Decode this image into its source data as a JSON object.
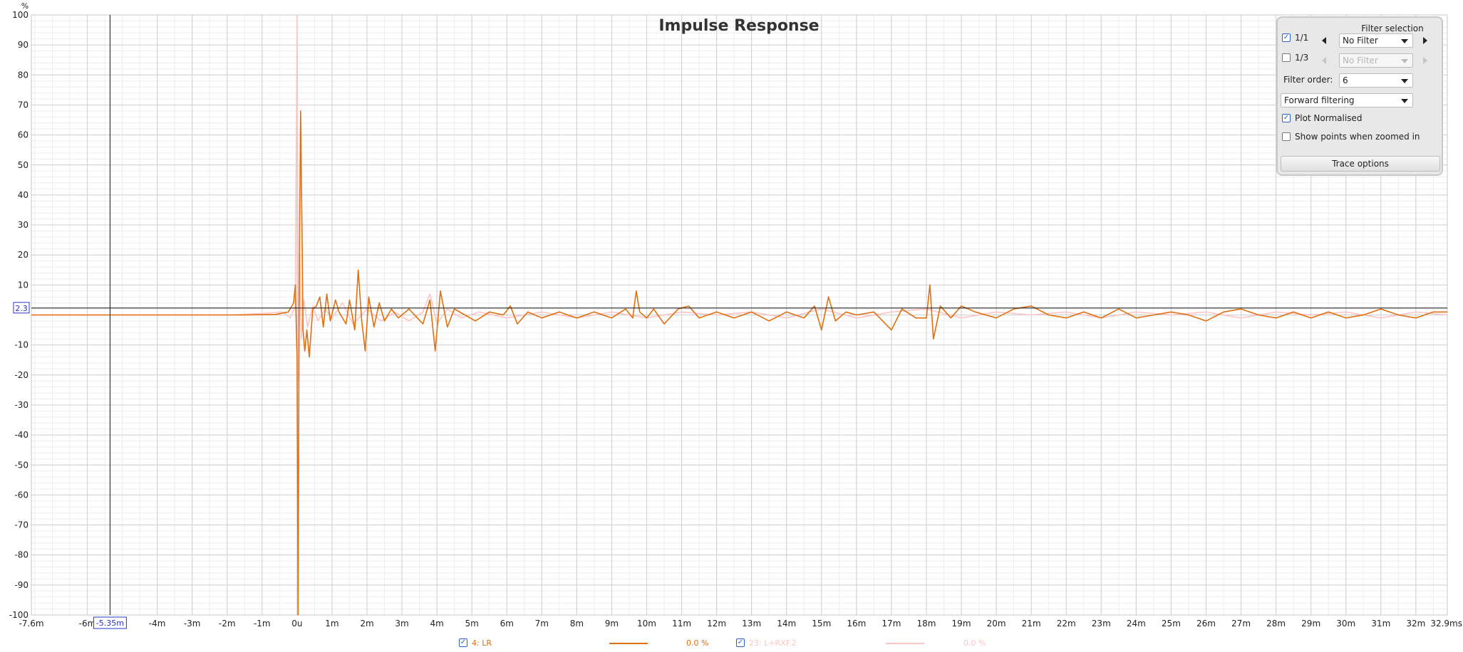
{
  "chart_data": {
    "type": "line",
    "title": "Impulse Response",
    "ylabel": "%",
    "xlabel": "",
    "xunit_end_label": "32.9ms",
    "xlim": [
      -7.6,
      32.9
    ],
    "ylim": [
      -100,
      100
    ],
    "xticks": [
      {
        "v": -7.6,
        "label": "-7.6m"
      },
      {
        "v": -6,
        "label": "-6m"
      },
      {
        "v": -4,
        "label": "-4m"
      },
      {
        "v": -3,
        "label": "-3m"
      },
      {
        "v": -2,
        "label": "-2m"
      },
      {
        "v": -1,
        "label": "-1m"
      },
      {
        "v": 0,
        "label": "0u"
      },
      {
        "v": 1,
        "label": "1m"
      },
      {
        "v": 2,
        "label": "2m"
      },
      {
        "v": 3,
        "label": "3m"
      },
      {
        "v": 4,
        "label": "4m"
      },
      {
        "v": 5,
        "label": "5m"
      },
      {
        "v": 6,
        "label": "6m"
      },
      {
        "v": 7,
        "label": "7m"
      },
      {
        "v": 8,
        "label": "8m"
      },
      {
        "v": 9,
        "label": "9m"
      },
      {
        "v": 10,
        "label": "10m"
      },
      {
        "v": 11,
        "label": "11m"
      },
      {
        "v": 12,
        "label": "12m"
      },
      {
        "v": 13,
        "label": "13m"
      },
      {
        "v": 14,
        "label": "14m"
      },
      {
        "v": 15,
        "label": "15m"
      },
      {
        "v": 16,
        "label": "16m"
      },
      {
        "v": 17,
        "label": "17m"
      },
      {
        "v": 18,
        "label": "18m"
      },
      {
        "v": 19,
        "label": "19m"
      },
      {
        "v": 20,
        "label": "20m"
      },
      {
        "v": 21,
        "label": "21m"
      },
      {
        "v": 22,
        "label": "22m"
      },
      {
        "v": 23,
        "label": "23m"
      },
      {
        "v": 24,
        "label": "24m"
      },
      {
        "v": 25,
        "label": "25m"
      },
      {
        "v": 26,
        "label": "26m"
      },
      {
        "v": 27,
        "label": "27m"
      },
      {
        "v": 28,
        "label": "28m"
      },
      {
        "v": 29,
        "label": "29m"
      },
      {
        "v": 30,
        "label": "30m"
      },
      {
        "v": 31,
        "label": "31m"
      },
      {
        "v": 32,
        "label": "32m"
      },
      {
        "v": 32.9,
        "label": "32.9ms"
      }
    ],
    "yticks": [
      100,
      90,
      80,
      70,
      60,
      50,
      40,
      30,
      20,
      10,
      0,
      -10,
      -20,
      -30,
      -40,
      -50,
      -60,
      -70,
      -80,
      -90,
      -100
    ],
    "ytick_labels": [
      "100",
      "90",
      "80",
      "70",
      "60",
      "50",
      "40",
      "30",
      "20",
      "10",
      "",
      "-10",
      "-20",
      "-30",
      "-40",
      "-50",
      "-60",
      "-70",
      "-80",
      "-90",
      "-100"
    ],
    "grid": true,
    "cursor": {
      "x": -5.35,
      "y": 2.3,
      "x_label": "-5.35m",
      "y_label": "2.3"
    },
    "series": [
      {
        "name": "4: LR",
        "color": "#e07010",
        "points": [
          [
            -7.6,
            0
          ],
          [
            -1.5,
            0
          ],
          [
            -0.6,
            0.2
          ],
          [
            -0.25,
            1
          ],
          [
            -0.1,
            4
          ],
          [
            -0.05,
            10
          ],
          [
            0,
            -15
          ],
          [
            0.03,
            -100
          ],
          [
            0.06,
            5
          ],
          [
            0.1,
            68
          ],
          [
            0.14,
            30
          ],
          [
            0.17,
            -5
          ],
          [
            0.22,
            -12
          ],
          [
            0.28,
            -5
          ],
          [
            0.35,
            -14
          ],
          [
            0.45,
            2
          ],
          [
            0.55,
            3
          ],
          [
            0.65,
            6
          ],
          [
            0.75,
            -4
          ],
          [
            0.85,
            7
          ],
          [
            0.95,
            -2
          ],
          [
            1.1,
            5
          ],
          [
            1.2,
            1
          ],
          [
            1.4,
            -3
          ],
          [
            1.5,
            5
          ],
          [
            1.65,
            -5
          ],
          [
            1.75,
            15
          ],
          [
            1.85,
            -2
          ],
          [
            1.95,
            -12
          ],
          [
            2.05,
            6
          ],
          [
            2.2,
            -4
          ],
          [
            2.35,
            4
          ],
          [
            2.5,
            -2
          ],
          [
            2.7,
            2
          ],
          [
            2.9,
            -1
          ],
          [
            3.2,
            2
          ],
          [
            3.6,
            -3
          ],
          [
            3.8,
            5
          ],
          [
            3.95,
            -12
          ],
          [
            4.1,
            8
          ],
          [
            4.3,
            -4
          ],
          [
            4.5,
            2
          ],
          [
            4.8,
            0
          ],
          [
            5.1,
            -2
          ],
          [
            5.5,
            1
          ],
          [
            5.9,
            0
          ],
          [
            6.1,
            3
          ],
          [
            6.3,
            -3
          ],
          [
            6.6,
            1
          ],
          [
            7,
            -1
          ],
          [
            7.5,
            1
          ],
          [
            8,
            -1
          ],
          [
            8.5,
            1
          ],
          [
            9,
            -1
          ],
          [
            9.4,
            2
          ],
          [
            9.6,
            -1
          ],
          [
            9.7,
            8
          ],
          [
            9.8,
            1
          ],
          [
            10,
            -1
          ],
          [
            10.2,
            2
          ],
          [
            10.5,
            -3
          ],
          [
            10.9,
            2
          ],
          [
            11.2,
            3
          ],
          [
            11.5,
            -1
          ],
          [
            12,
            1
          ],
          [
            12.5,
            -1
          ],
          [
            13,
            1
          ],
          [
            13.5,
            -2
          ],
          [
            14,
            1
          ],
          [
            14.5,
            -1
          ],
          [
            14.8,
            3
          ],
          [
            15,
            -5
          ],
          [
            15.2,
            6
          ],
          [
            15.4,
            -2
          ],
          [
            15.7,
            1
          ],
          [
            16,
            0
          ],
          [
            16.5,
            1
          ],
          [
            17,
            -5
          ],
          [
            17.3,
            2
          ],
          [
            17.7,
            -1
          ],
          [
            18,
            -1
          ],
          [
            18.1,
            10
          ],
          [
            18.2,
            -8
          ],
          [
            18.4,
            3
          ],
          [
            18.7,
            -1
          ],
          [
            19,
            3
          ],
          [
            19.4,
            1
          ],
          [
            20,
            -1
          ],
          [
            20.5,
            2
          ],
          [
            21,
            3
          ],
          [
            21.5,
            0
          ],
          [
            22,
            -1
          ],
          [
            22.5,
            1
          ],
          [
            23,
            -1
          ],
          [
            23.5,
            2
          ],
          [
            24,
            -1
          ],
          [
            24.5,
            0
          ],
          [
            25,
            1
          ],
          [
            25.5,
            0
          ],
          [
            26,
            -2
          ],
          [
            26.5,
            1
          ],
          [
            27,
            2
          ],
          [
            27.5,
            0
          ],
          [
            28,
            -1
          ],
          [
            28.5,
            1
          ],
          [
            29,
            -1
          ],
          [
            29.5,
            1
          ],
          [
            30,
            -1
          ],
          [
            30.5,
            0
          ],
          [
            31,
            2
          ],
          [
            31.5,
            0
          ],
          [
            32,
            -1
          ],
          [
            32.5,
            1
          ],
          [
            32.9,
            1
          ]
        ]
      },
      {
        "name": "23: L+RXF.2",
        "color": "#ffc4c4",
        "points": [
          [
            -7.6,
            0
          ],
          [
            -2,
            0
          ],
          [
            -1,
            0.5
          ],
          [
            -0.4,
            1
          ],
          [
            -0.2,
            -1
          ],
          [
            -0.05,
            3
          ],
          [
            0,
            100
          ],
          [
            0.04,
            -22
          ],
          [
            0.08,
            20
          ],
          [
            0.12,
            -8
          ],
          [
            0.2,
            5
          ],
          [
            0.3,
            -4
          ],
          [
            0.45,
            3
          ],
          [
            0.6,
            -2
          ],
          [
            0.8,
            2
          ],
          [
            1,
            -1
          ],
          [
            1.3,
            4
          ],
          [
            1.6,
            -3
          ],
          [
            2,
            2
          ],
          [
            2.4,
            -2
          ],
          [
            2.8,
            1
          ],
          [
            3.2,
            -2
          ],
          [
            3.6,
            1
          ],
          [
            3.8,
            7
          ],
          [
            4,
            -3
          ],
          [
            4.3,
            2
          ],
          [
            4.7,
            -1
          ],
          [
            5.2,
            1
          ],
          [
            6,
            -1
          ],
          [
            7,
            1
          ],
          [
            8,
            -1
          ],
          [
            9,
            1
          ],
          [
            10,
            -1
          ],
          [
            11,
            1
          ],
          [
            12,
            0
          ],
          [
            13,
            1
          ],
          [
            14,
            -1
          ],
          [
            15,
            2
          ],
          [
            16,
            -1
          ],
          [
            17,
            1
          ],
          [
            18,
            2
          ],
          [
            19,
            -1
          ],
          [
            20,
            1
          ],
          [
            21,
            0
          ],
          [
            22,
            1
          ],
          [
            23,
            -1
          ],
          [
            24,
            1
          ],
          [
            25,
            0
          ],
          [
            26,
            1
          ],
          [
            27,
            -1
          ],
          [
            28,
            1
          ],
          [
            29,
            0
          ],
          [
            30,
            1
          ],
          [
            31,
            -1
          ],
          [
            32,
            1
          ],
          [
            32.9,
            0
          ]
        ]
      }
    ]
  },
  "filter_panel": {
    "heading": "Filter selection",
    "row1": {
      "label": "1/1",
      "checked": true,
      "value": "No Filter"
    },
    "row2": {
      "label": "1/3",
      "checked": false,
      "value": "No Filter"
    },
    "filter_order_label": "Filter order:",
    "filter_order_value": "6",
    "direction_value": "Forward filtering",
    "plot_normalised_label": "Plot Normalised",
    "plot_normalised_checked": true,
    "show_points_label": "Show points when zoomed in",
    "show_points_checked": false,
    "trace_options_label": "Trace options"
  },
  "legend": {
    "items": [
      {
        "name": "4: LR",
        "value": "0.0 %",
        "checked": true,
        "color": "#e07010"
      },
      {
        "name": "23: L+RXF.2",
        "value": "0.0 %",
        "checked": true,
        "color": "#ffc4c4"
      }
    ]
  }
}
